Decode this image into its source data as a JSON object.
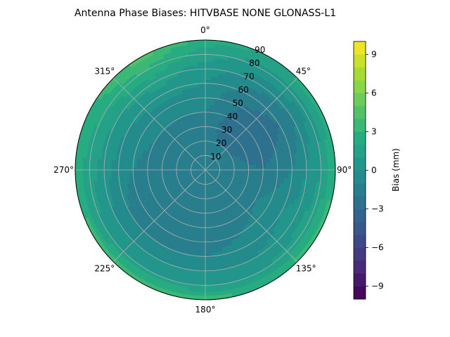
{
  "chart_data": {
    "type": "heatmap",
    "projection": "polar",
    "title": "Antenna Phase Biases: HITVBASE        NONE GLONASS-L1",
    "theta_zero": "top",
    "theta_direction": "clockwise",
    "theta_ticks": [
      {
        "deg": 0,
        "label": "0°"
      },
      {
        "deg": 45,
        "label": "45°"
      },
      {
        "deg": 90,
        "label": "90°"
      },
      {
        "deg": 135,
        "label": "135°"
      },
      {
        "deg": 180,
        "label": "180°"
      },
      {
        "deg": 225,
        "label": "225°"
      },
      {
        "deg": 270,
        "label": "270°"
      },
      {
        "deg": 315,
        "label": "315°"
      }
    ],
    "r_ticks": [
      {
        "value": 10,
        "label": "10"
      },
      {
        "value": 20,
        "label": "20"
      },
      {
        "value": 30,
        "label": "30"
      },
      {
        "value": 40,
        "label": "40"
      },
      {
        "value": 50,
        "label": "50"
      },
      {
        "value": 60,
        "label": "60"
      },
      {
        "value": 70,
        "label": "70"
      },
      {
        "value": 80,
        "label": "80"
      },
      {
        "value": 90,
        "label": "90"
      }
    ],
    "r_max": 90,
    "grid": true,
    "colorbar": {
      "label": "Bias (mm)",
      "min": -10,
      "max": 10,
      "step": 1,
      "colormap": "viridis",
      "ticks": [
        {
          "value": -9,
          "label": "−9"
        },
        {
          "value": -6,
          "label": "−6"
        },
        {
          "value": -3,
          "label": "−3"
        },
        {
          "value": 0,
          "label": "0"
        },
        {
          "value": 3,
          "label": "3"
        },
        {
          "value": 6,
          "label": "6"
        },
        {
          "value": 9,
          "label": "9"
        }
      ]
    },
    "field": {
      "azimuth_deg": [
        0,
        30,
        60,
        90,
        120,
        150,
        180,
        210,
        240,
        270,
        300,
        330
      ],
      "zenith_deg": [
        0,
        10,
        20,
        30,
        40,
        50,
        60,
        70,
        80,
        90
      ],
      "bias_mm": [
        [
          -1.0,
          -1.0,
          -1.0,
          -1.0,
          -1.0,
          -1.0,
          -1.0,
          -1.0,
          -1.0,
          -1.0,
          -1.0,
          -1.0
        ],
        [
          -1.2,
          -1.5,
          -1.5,
          -1.2,
          -1.0,
          -1.2,
          -1.5,
          -1.5,
          -1.2,
          -1.0,
          -1.2,
          -1.2
        ],
        [
          -1.5,
          -2.0,
          -2.0,
          -1.5,
          -1.0,
          -1.5,
          -2.0,
          -2.0,
          -1.8,
          -1.2,
          -1.5,
          -1.5
        ],
        [
          -1.5,
          -2.5,
          -2.5,
          -1.8,
          -1.0,
          -1.5,
          -2.0,
          -2.0,
          -2.0,
          -1.5,
          -1.5,
          -1.5
        ],
        [
          -1.0,
          -2.5,
          -3.0,
          -2.0,
          -1.0,
          -1.5,
          -2.0,
          -2.0,
          -2.0,
          -1.5,
          -1.0,
          -1.0
        ],
        [
          -0.5,
          -2.0,
          -2.5,
          -1.5,
          -0.5,
          -1.0,
          -1.5,
          -1.5,
          -1.5,
          -1.0,
          -0.5,
          -0.5
        ],
        [
          0.0,
          -1.5,
          -2.0,
          -1.0,
          0.0,
          -0.5,
          -1.0,
          -1.0,
          -1.0,
          -0.5,
          0.0,
          0.5
        ],
        [
          0.5,
          -0.5,
          -1.0,
          0.0,
          0.5,
          0.0,
          0.0,
          0.0,
          0.0,
          0.5,
          1.0,
          1.5
        ],
        [
          1.5,
          0.5,
          0.5,
          1.0,
          1.5,
          1.0,
          1.0,
          1.0,
          1.0,
          1.5,
          2.0,
          3.0
        ],
        [
          2.5,
          2.0,
          2.5,
          3.0,
          3.5,
          3.0,
          3.5,
          4.0,
          3.5,
          2.5,
          3.0,
          4.5
        ]
      ]
    }
  }
}
